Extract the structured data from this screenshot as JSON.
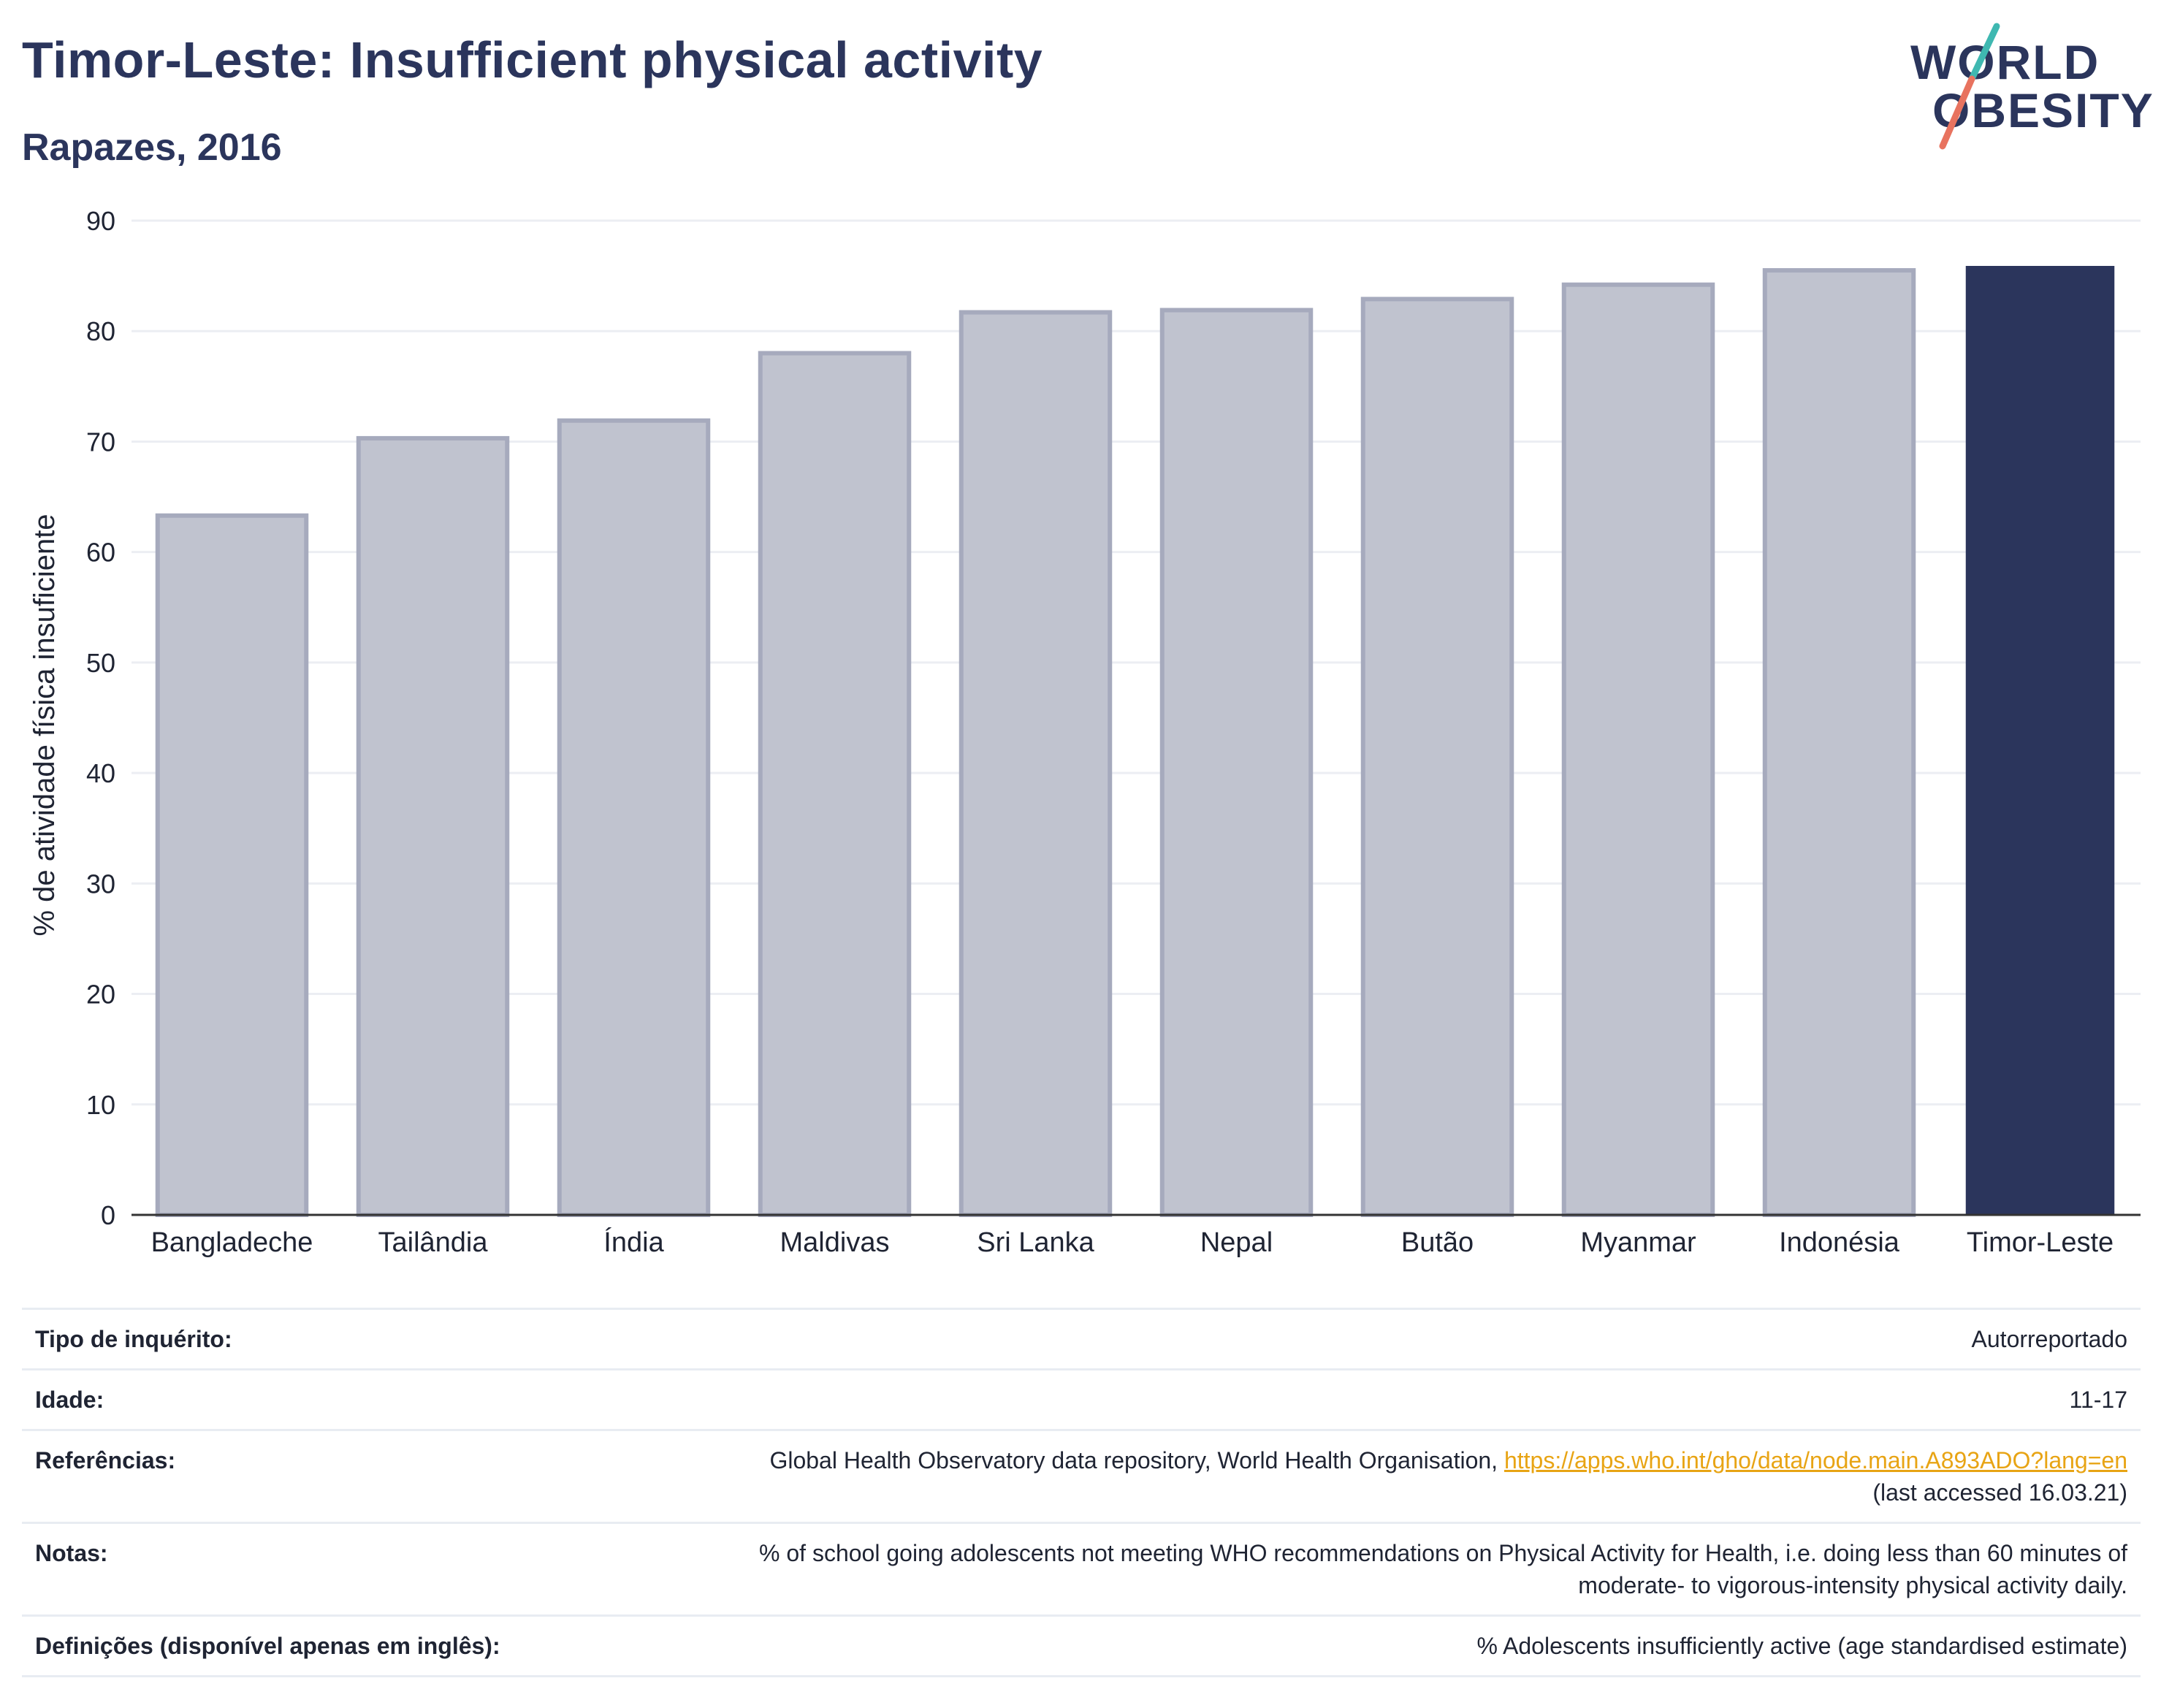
{
  "header": {
    "title": "Timor-Leste: Insufficient physical activity",
    "subtitle": "Rapazes, 2016"
  },
  "logo": {
    "line1": "WORLD",
    "line2": "OBESITY",
    "accent_colors": [
      "#3fb8b1",
      "#e8735f"
    ]
  },
  "chart_data": {
    "type": "bar",
    "title": "",
    "xlabel": "",
    "ylabel": "% de atividade física insuficiente",
    "ylim": [
      0,
      90
    ],
    "yticks": [
      0,
      10,
      20,
      30,
      40,
      50,
      60,
      70,
      80,
      90
    ],
    "grid": true,
    "categories": [
      "Bangladeche",
      "Tailândia",
      "Índia",
      "Maldivas",
      "Sri Lanka",
      "Nepal",
      "Butão",
      "Myanmar",
      "Indonésia",
      "Timor-Leste"
    ],
    "values": [
      63.3,
      70.3,
      71.9,
      78.0,
      81.7,
      81.9,
      82.9,
      84.2,
      85.5,
      85.9
    ],
    "highlight": "Timor-Leste",
    "colors": {
      "bar": "#c0c3cf",
      "bar_border": "#a6aabd",
      "highlight": "#2b355c",
      "grid": "#eceef3",
      "axis": "#333333"
    }
  },
  "info": {
    "rows": [
      {
        "label": "Tipo de inquérito:",
        "value": "Autorreportado"
      },
      {
        "label": "Idade:",
        "value": "11-17"
      },
      {
        "label": "Referências:",
        "value": "Global Health Observatory data repository, World Health Organisation, ",
        "link": "https://apps.who.int/gho/data/node.main.A893ADO?lang=en",
        "value2": "(last accessed 16.03.21)"
      },
      {
        "label": "Notas:",
        "value": "% of school going adolescents not meeting WHO recommendations on Physical Activity for Health, i.e. doing less than 60 minutes of",
        "value2": "moderate- to vigorous-intensity physical activity daily."
      },
      {
        "label": "Definições (disponível apenas em inglês):",
        "value": "% Adolescents insufficiently active (age standardised estimate)"
      }
    ]
  }
}
